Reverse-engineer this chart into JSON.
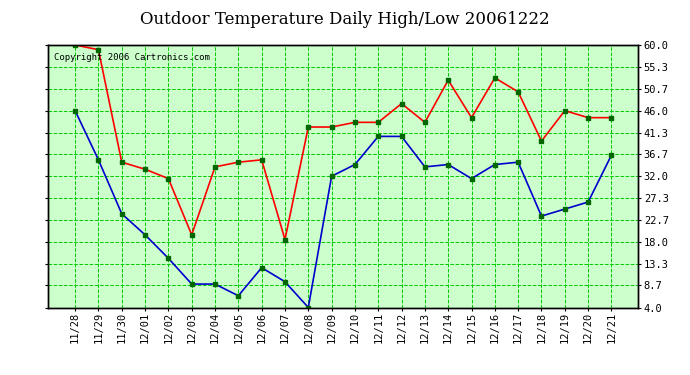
{
  "title": "Outdoor Temperature Daily High/Low 20061222",
  "copyright": "Copyright 2006 Cartronics.com",
  "x_labels": [
    "11/28",
    "11/29",
    "11/30",
    "12/01",
    "12/02",
    "12/03",
    "12/04",
    "12/05",
    "12/06",
    "12/07",
    "12/08",
    "12/09",
    "12/10",
    "12/11",
    "12/12",
    "12/13",
    "12/14",
    "12/15",
    "12/16",
    "12/17",
    "12/18",
    "12/19",
    "12/20",
    "12/21"
  ],
  "high_temps": [
    60.0,
    59.0,
    35.0,
    33.5,
    31.5,
    19.5,
    34.0,
    35.0,
    35.5,
    18.5,
    42.5,
    42.5,
    43.5,
    43.5,
    47.5,
    43.5,
    52.5,
    44.5,
    53.0,
    50.0,
    39.5,
    46.0,
    44.5,
    44.5
  ],
  "low_temps": [
    46.0,
    35.5,
    24.0,
    19.5,
    14.5,
    9.0,
    9.0,
    6.5,
    12.5,
    9.5,
    4.0,
    32.0,
    34.5,
    40.5,
    40.5,
    34.0,
    34.5,
    31.5,
    34.5,
    35.0,
    23.5,
    25.0,
    26.5,
    36.5
  ],
  "high_color": "#ff0000",
  "low_color": "#0000cc",
  "marker_color": "#006600",
  "bg_color": "#ffffff",
  "plot_bg_color": "#ccffcc",
  "grid_color": "#00cc00",
  "title_color": "#000000",
  "copyright_color": "#000000",
  "y_ticks": [
    4.0,
    8.7,
    13.3,
    18.0,
    22.7,
    27.3,
    32.0,
    36.7,
    41.3,
    46.0,
    50.7,
    55.3,
    60.0
  ],
  "y_min": 4.0,
  "y_max": 60.0,
  "title_fontsize": 12,
  "tick_fontsize": 7.5,
  "copyright_fontsize": 6.5,
  "line_width": 1.2,
  "marker_size": 3.5
}
